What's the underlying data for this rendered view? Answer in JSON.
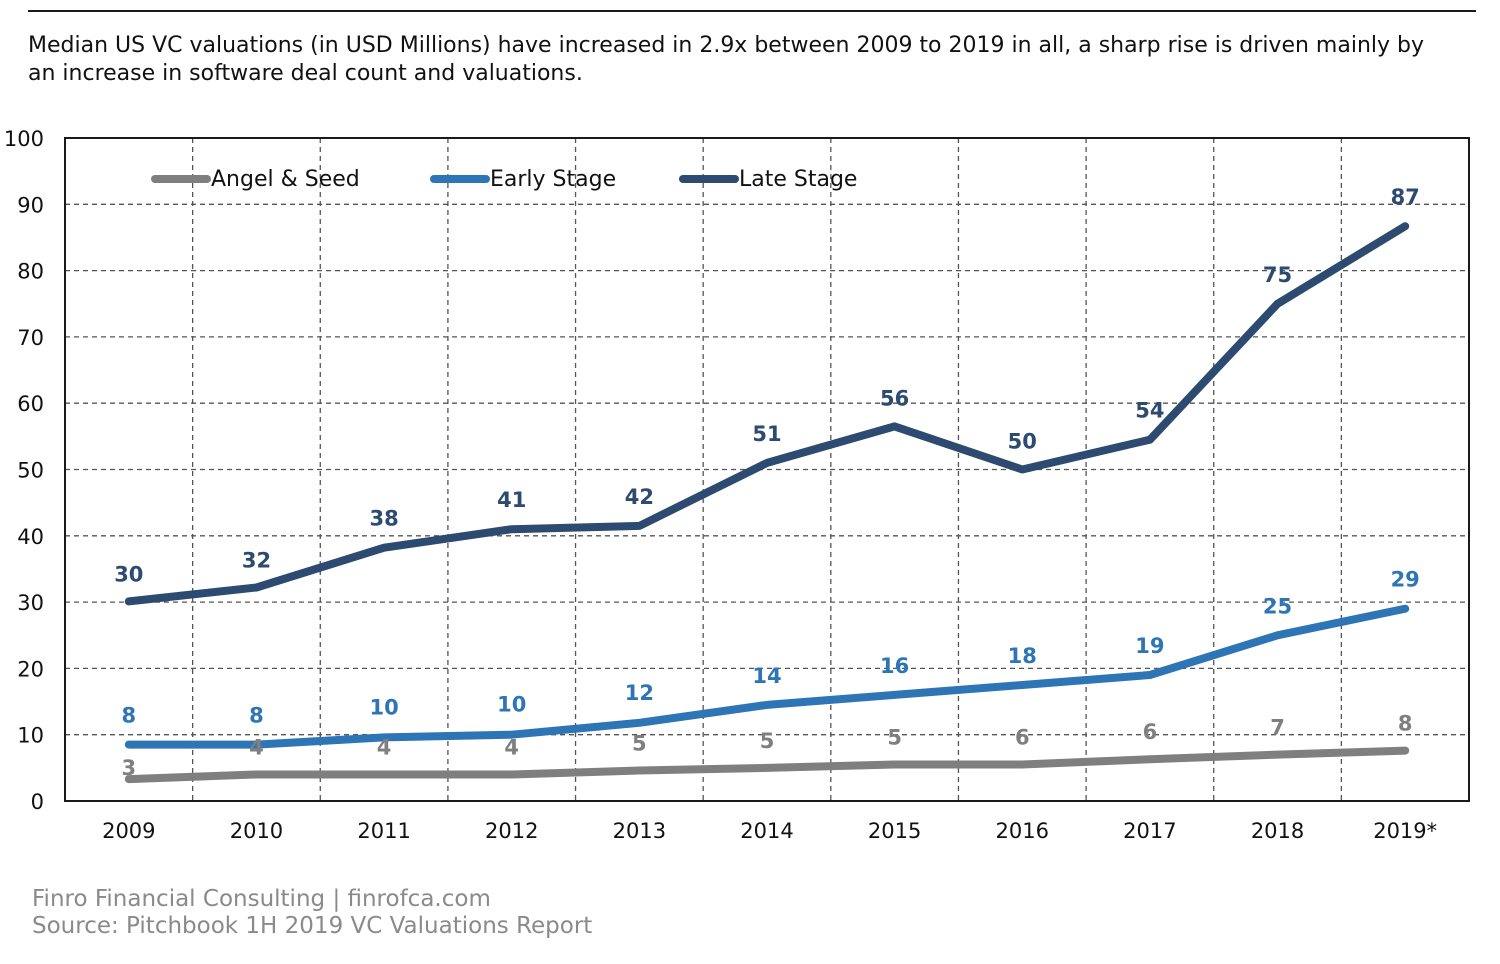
{
  "subtitle": "Median US VC valuations (in USD Millions) have increased in 2.9x between 2009 to 2019 in all, a sharp rise is driven mainly by an increase in software deal count and valuations.",
  "footer": {
    "brand": "Finro Financial Consulting   |   finrofca.com",
    "source": "Source: Pitchbook 1H 2019 VC Valuations Report"
  },
  "chart_data": {
    "type": "line",
    "title": "",
    "xlabel": "",
    "ylabel": "",
    "categories": [
      "2009",
      "2010",
      "2011",
      "2012",
      "2013",
      "2014",
      "2015",
      "2016",
      "2017",
      "2018",
      "2019*"
    ],
    "ylim": [
      0,
      100
    ],
    "yticks": [
      0,
      10,
      20,
      30,
      40,
      50,
      60,
      70,
      80,
      90,
      100
    ],
    "grid": true,
    "legend_position": "top-left",
    "series": [
      {
        "name": "Angel & Seed",
        "color": "#7f7f7f",
        "values": [
          3.3,
          4,
          4,
          4,
          4.6,
          5,
          5.5,
          5.5,
          6.3,
          7,
          7.6
        ],
        "labels": [
          "3",
          "4",
          "4",
          "4",
          "5",
          "5",
          "5",
          "6",
          "6",
          "7",
          "8"
        ]
      },
      {
        "name": "Early Stage",
        "color": "#2e75b6",
        "values": [
          8.5,
          8.5,
          9.6,
          10,
          11.8,
          14.5,
          16,
          17.5,
          19,
          25,
          29
        ],
        "labels": [
          "8",
          "8",
          "10",
          "10",
          "12",
          "14",
          "16",
          "18",
          "19",
          "25",
          "29"
        ]
      },
      {
        "name": "Late Stage",
        "color": "#2d4a70",
        "values": [
          30.1,
          32.2,
          38.2,
          41,
          41.5,
          51,
          56.5,
          50,
          54.5,
          75,
          86.7
        ],
        "labels": [
          "30",
          "32",
          "38",
          "41",
          "42",
          "51",
          "56",
          "50",
          "54",
          "75",
          "87"
        ]
      }
    ]
  }
}
